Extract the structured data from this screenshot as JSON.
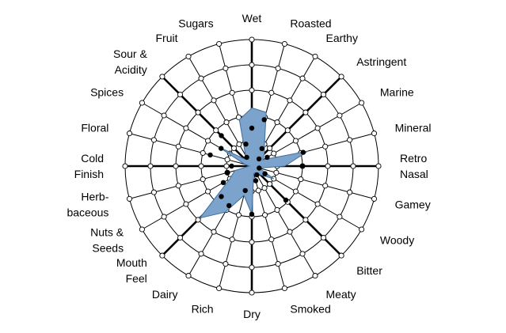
{
  "chart_data": {
    "type": "radar",
    "title": "",
    "rings": 5,
    "r_max": 5,
    "axes": [
      {
        "label": [
          "Wet"
        ],
        "value": 2.3,
        "marker": 1.5,
        "bold": true
      },
      {
        "label": [
          "Roasted"
        ],
        "value": 2.2,
        "marker": 1.9,
        "bold": false
      },
      {
        "label": [
          "Earthy"
        ],
        "value": 1.0,
        "marker": 0.8,
        "bold": false
      },
      {
        "label": [
          "Astringent"
        ],
        "value": 0.7,
        "marker": 0.4,
        "bold": true
      },
      {
        "label": [
          "Marine"
        ],
        "value": 0.5,
        "marker": 0.7,
        "bold": false
      },
      {
        "label": [
          "Mineral"
        ],
        "value": 2.3,
        "marker": 2.1,
        "bold": false
      },
      {
        "label": [
          "Retro",
          "Nasal"
        ],
        "value": 1.3,
        "marker": 2.0,
        "bold": true
      },
      {
        "label": [
          "Gamey"
        ],
        "value": 0.3,
        "marker": 0.3,
        "bold": false
      },
      {
        "label": [
          "Woody"
        ],
        "value": 1.0,
        "marker": 0.6,
        "bold": false
      },
      {
        "label": [
          "Bitter"
        ],
        "value": 0.5,
        "marker": 1.9,
        "bold": true
      },
      {
        "label": [
          "Meaty"
        ],
        "value": 0.3,
        "marker": 0.4,
        "bold": false
      },
      {
        "label": [
          "Smoked"
        ],
        "value": 0.3,
        "marker": 0.6,
        "bold": false
      },
      {
        "label": [
          "Dry"
        ],
        "value": 1.9,
        "marker": 1.9,
        "bold": true
      },
      {
        "label": [
          "Rich"
        ],
        "value": 1.2,
        "marker": 1.0,
        "bold": false
      },
      {
        "label": [
          "Dairy"
        ],
        "value": 2.1,
        "marker": 1.8,
        "bold": false
      },
      {
        "label": [
          "Mouth",
          "Feel"
        ],
        "value": 2.9,
        "marker": 1.7,
        "bold": true
      },
      {
        "label": [
          "Nuts &",
          "Seeds"
        ],
        "value": 1.0,
        "marker": 1.3,
        "bold": false
      },
      {
        "label": [
          "Herb-",
          "baceous"
        ],
        "value": 0.7,
        "marker": 1.0,
        "bold": false
      },
      {
        "label": [
          "Cold",
          "Finish"
        ],
        "value": 0.1,
        "marker": 0.8,
        "bold": true
      },
      {
        "label": [
          "Floral"
        ],
        "value": 0.3,
        "marker": 1.7,
        "bold": false
      },
      {
        "label": [
          "Spices"
        ],
        "value": 1.5,
        "marker": 1.4,
        "bold": false
      },
      {
        "label": [
          "Sour &",
          "Acidity"
        ],
        "value": 0.4,
        "marker": 1.7,
        "bold": true
      },
      {
        "label": [
          "Fruit"
        ],
        "value": 0.5,
        "marker": 0.4,
        "bold": false
      },
      {
        "label": [
          "Sugars"
        ],
        "value": 1.9,
        "marker": 0.9,
        "bold": false
      }
    ],
    "fill_color": "#7ba3cb",
    "outline_color": "#3f6e9b",
    "grid_color": "#000000",
    "grid": true
  }
}
